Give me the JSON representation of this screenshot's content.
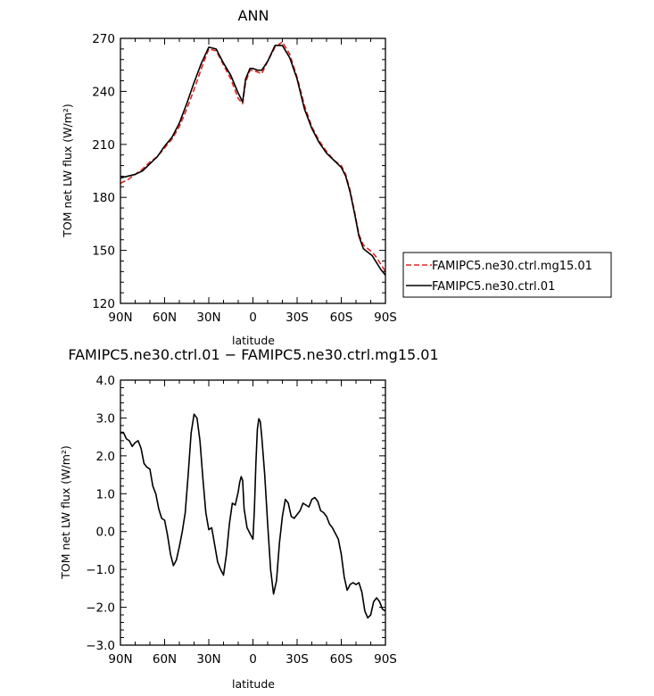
{
  "chart_data": [
    {
      "type": "line",
      "title": "ANN",
      "xlabel": "latitude",
      "ylabel": "TOM net LW flux (W/m²)",
      "xlim": [
        90,
        -90
      ],
      "ylim": [
        120,
        270
      ],
      "xticks": [
        90,
        60,
        30,
        0,
        -30,
        -60,
        -90
      ],
      "xticklabels": [
        "90N",
        "60N",
        "30N",
        "0",
        "30S",
        "60S",
        "90S"
      ],
      "yticks": [
        120,
        150,
        180,
        210,
        240,
        270
      ],
      "yticklabels": [
        "120",
        "150",
        "180",
        "210",
        "240",
        "270"
      ],
      "grid": false,
      "legend_position": "right",
      "series": [
        {
          "name": "FAMIPC5.ne30.ctrl.mg15.01",
          "color": "#e8201c",
          "dash": "dashed",
          "x": [
            90,
            85,
            80,
            75,
            70,
            65,
            60,
            55,
            50,
            45,
            40,
            35,
            30,
            25,
            20,
            15,
            10,
            7,
            5,
            2,
            0,
            -3,
            -6,
            -10,
            -15,
            -20,
            -25,
            -30,
            -35,
            -40,
            -45,
            -50,
            -55,
            -60,
            -63,
            -66,
            -69,
            -72,
            -75,
            -78,
            -81,
            -84,
            -87,
            -90
          ],
          "y": [
            188,
            190,
            193,
            196,
            200,
            203,
            208,
            213,
            220,
            230,
            241,
            253,
            264,
            263,
            255,
            247,
            236,
            233,
            245,
            252,
            252,
            251,
            250,
            257,
            265,
            268,
            261,
            248,
            232,
            220,
            212,
            206,
            201,
            198,
            193,
            184,
            172,
            159,
            153,
            151,
            149,
            146,
            142,
            138
          ]
        },
        {
          "name": "FAMIPC5.ne30.ctrl.01",
          "color": "#000000",
          "dash": "solid",
          "x": [
            90,
            85,
            80,
            75,
            70,
            65,
            60,
            55,
            50,
            45,
            40,
            35,
            30,
            25,
            20,
            15,
            10,
            7,
            5,
            2,
            0,
            -3,
            -6,
            -10,
            -15,
            -20,
            -25,
            -30,
            -35,
            -40,
            -45,
            -50,
            -55,
            -60,
            -63,
            -66,
            -69,
            -72,
            -75,
            -78,
            -81,
            -84,
            -87,
            -90
          ],
          "y": [
            191,
            192,
            193,
            195,
            199,
            203,
            209,
            214,
            222,
            233,
            245,
            256,
            265,
            264,
            256,
            249,
            239,
            234,
            247,
            253,
            253,
            252,
            252,
            257,
            266,
            266,
            259,
            247,
            230,
            219,
            211,
            205,
            201,
            197,
            192,
            183,
            171,
            158,
            151,
            149,
            147,
            143,
            139,
            136
          ]
        }
      ]
    },
    {
      "type": "line",
      "title": "FAMIPC5.ne30.ctrl.01 − FAMIPC5.ne30.ctrl.mg15.01",
      "xlabel": "latitude",
      "ylabel": "TOM net LW flux (W/m²)",
      "xlim": [
        90,
        -90
      ],
      "ylim": [
        -3.0,
        4.0
      ],
      "xticks": [
        90,
        60,
        30,
        0,
        -30,
        -60,
        -90
      ],
      "xticklabels": [
        "90N",
        "60N",
        "30N",
        "0",
        "30S",
        "60S",
        "90S"
      ],
      "yticks": [
        -3.0,
        -2.0,
        -1.0,
        0.0,
        1.0,
        2.0,
        3.0,
        4.0
      ],
      "yticklabels": [
        "−3.0",
        "−2.0",
        "−1.0",
        "0.0",
        "1.0",
        "2.0",
        "3.0",
        "4.0"
      ],
      "grid": false,
      "series": [
        {
          "color": "#000000",
          "dash": "solid",
          "x": [
            90,
            88,
            86,
            84,
            82,
            80,
            78,
            76,
            74,
            72,
            70,
            68,
            66,
            64,
            62,
            60,
            58,
            56,
            54,
            52,
            50,
            48,
            46,
            44,
            42,
            40,
            38,
            36,
            34,
            32,
            30,
            28,
            26,
            24,
            22,
            20,
            18,
            16,
            14,
            12,
            10,
            9,
            8,
            7,
            6,
            4,
            2,
            0,
            -1,
            -2,
            -3,
            -4,
            -5,
            -6,
            -8,
            -10,
            -12,
            -14,
            -16,
            -18,
            -20,
            -22,
            -24,
            -26,
            -28,
            -30,
            -32,
            -34,
            -36,
            -38,
            -40,
            -42,
            -44,
            -46,
            -48,
            -50,
            -52,
            -54,
            -56,
            -58,
            -60,
            -62,
            -64,
            -66,
            -68,
            -70,
            -72,
            -74,
            -76,
            -78,
            -80,
            -82,
            -84,
            -86,
            -88,
            -90
          ],
          "y": [
            2.62,
            2.62,
            2.45,
            2.4,
            2.25,
            2.35,
            2.4,
            2.2,
            1.8,
            1.7,
            1.65,
            1.2,
            1.0,
            0.6,
            0.35,
            0.3,
            -0.1,
            -0.6,
            -0.9,
            -0.75,
            -0.4,
            0.0,
            0.5,
            1.5,
            2.6,
            3.1,
            3.0,
            2.4,
            1.4,
            0.5,
            0.05,
            0.1,
            -0.35,
            -0.8,
            -1.0,
            -1.15,
            -0.6,
            0.2,
            0.75,
            0.7,
            1.05,
            1.3,
            1.45,
            1.35,
            0.6,
            0.1,
            -0.05,
            -0.2,
            0.6,
            1.8,
            2.7,
            2.98,
            2.9,
            2.5,
            1.5,
            0.2,
            -1.0,
            -1.65,
            -1.3,
            -0.3,
            0.4,
            0.85,
            0.75,
            0.4,
            0.35,
            0.45,
            0.55,
            0.75,
            0.7,
            0.65,
            0.85,
            0.9,
            0.8,
            0.55,
            0.5,
            0.4,
            0.2,
            0.1,
            -0.05,
            -0.2,
            -0.6,
            -1.2,
            -1.55,
            -1.4,
            -1.35,
            -1.4,
            -1.35,
            -1.6,
            -2.1,
            -2.28,
            -2.2,
            -1.85,
            -1.75,
            -1.85,
            -2.05,
            -2.1
          ]
        }
      ]
    }
  ]
}
